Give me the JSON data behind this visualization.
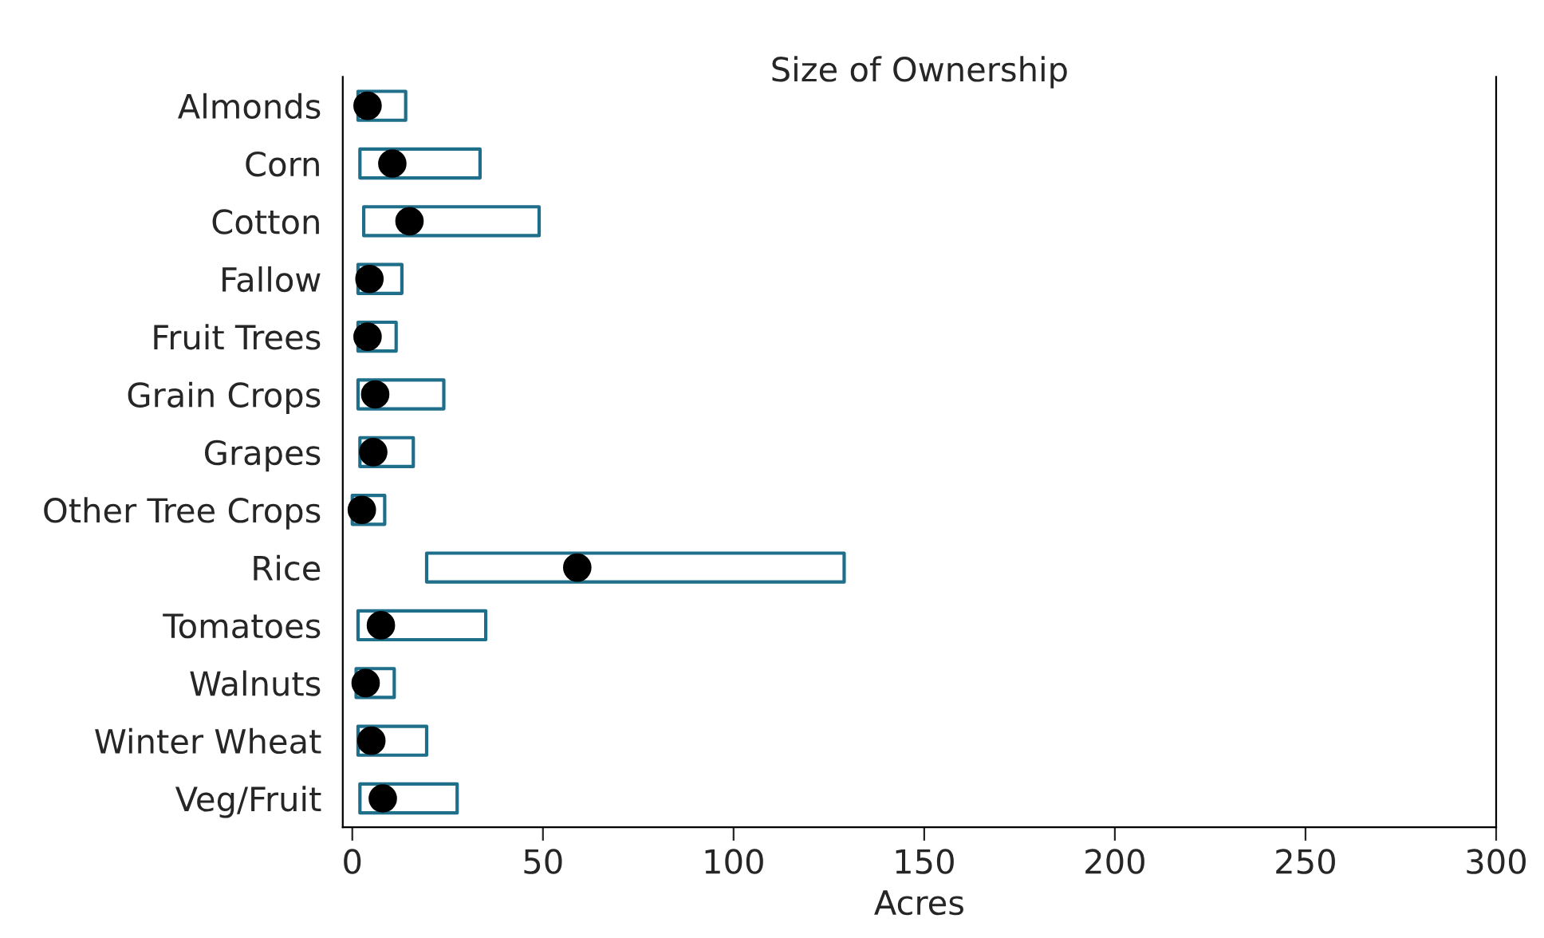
{
  "chart_data": {
    "type": "box",
    "orientation": "horizontal",
    "title": "Size of Ownership",
    "xlabel": "Acres",
    "categories": [
      "Almonds",
      "Corn",
      "Cotton",
      "Fallow",
      "Fruit Trees",
      "Grain Crops",
      "Grapes",
      "Other Tree Crops",
      "Rice",
      "Tomatoes",
      "Walnuts",
      "Winter Wheat",
      "Veg/Fruit"
    ],
    "boxes": [
      {
        "low": 1.5,
        "q1": 1.5,
        "median": 4,
        "q3": 14,
        "high": 14
      },
      {
        "low": 2,
        "q1": 2,
        "median": 10.5,
        "q3": 33.5,
        "high": 33.5
      },
      {
        "low": 3,
        "q1": 3,
        "median": 15,
        "q3": 49,
        "high": 49
      },
      {
        "low": 1.5,
        "q1": 1.5,
        "median": 4.5,
        "q3": 13,
        "high": 13
      },
      {
        "low": 1.5,
        "q1": 1.5,
        "median": 4,
        "q3": 11.5,
        "high": 11.5
      },
      {
        "low": 1.5,
        "q1": 1.5,
        "median": 6,
        "q3": 24,
        "high": 24
      },
      {
        "low": 2,
        "q1": 2,
        "median": 5.5,
        "q3": 16,
        "high": 16
      },
      {
        "low": 0,
        "q1": 0,
        "median": 2.5,
        "q3": 8.5,
        "high": 8.5
      },
      {
        "low": 19.5,
        "q1": 19.5,
        "median": 59,
        "q3": 129,
        "high": 129
      },
      {
        "low": 1.5,
        "q1": 1.5,
        "median": 7.5,
        "q3": 35,
        "high": 35
      },
      {
        "low": 1,
        "q1": 1,
        "median": 3.5,
        "q3": 11,
        "high": 11
      },
      {
        "low": 1.5,
        "q1": 1.5,
        "median": 5,
        "q3": 19.5,
        "high": 19.5
      },
      {
        "low": 2,
        "q1": 2,
        "median": 8,
        "q3": 27.5,
        "high": 27.5
      }
    ],
    "color": "#1f6f8b",
    "xlim": [
      -2.5,
      300
    ],
    "xticks": [
      0,
      50,
      100,
      150,
      200,
      250,
      300
    ],
    "grid": false
  }
}
